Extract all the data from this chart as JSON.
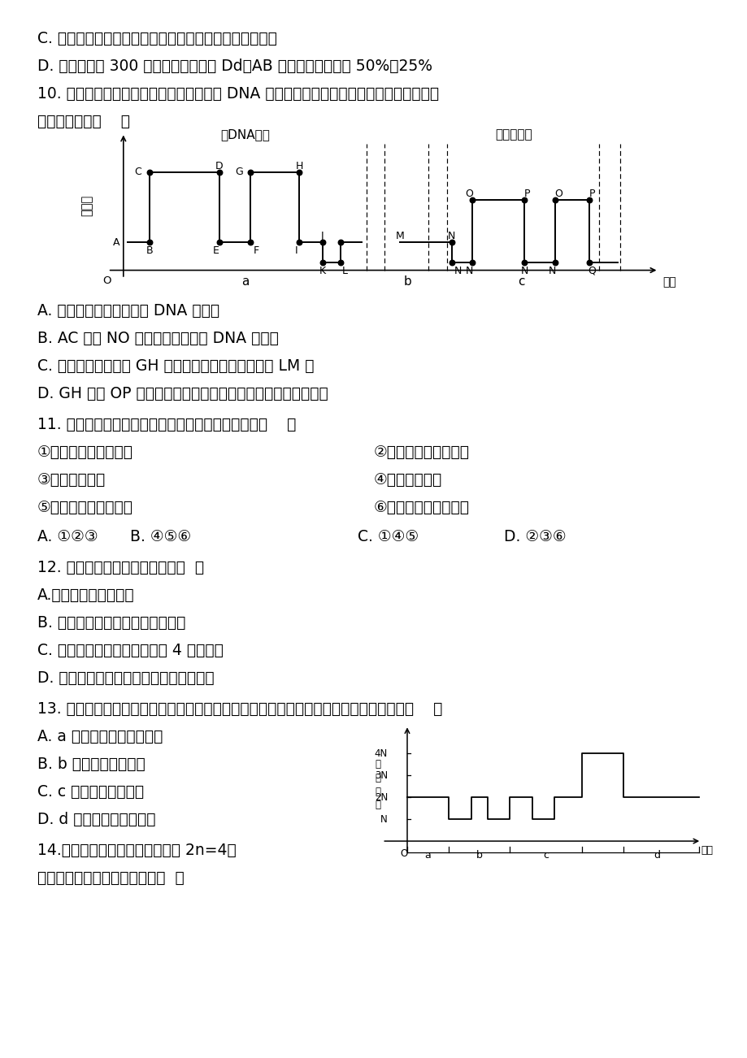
{
  "bg": "#ffffff",
  "lines": [
    "C. 乙同学模拟的是非同源染色体上非等位基因的自由组合",
    "D. 甲、乙重复 300 次实验后，统计的 Dd、AB 组合的概率依次为 50%、25%",
    "10. 下图表示细胞分裂和受精作用过程中核 DNA 含量和染色体数目的变化。据图分析，下列",
    "叙述正确的是（    ）"
  ],
  "answers_10": [
    "A. 图中所示时期发生三次 DNA 的复制",
    "B. AC 段和 NO 段形成的原因都是 DNA 的复制",
    "C. 基因的分离发生在 GH 段，基因的自由组合发生在 LM 段",
    "D. GH 段和 OP 段含有的染色体数目相同，且都含有同源染色体"
  ],
  "q11_text": "11. 下列细胞既含有同源染色体，又含染色单体的是（    ）",
  "q11_col1": [
    "①减数第一次分裂后期",
    "③有丝分裂后期",
    "⑤减数第一次分裂中期"
  ],
  "q11_col2": [
    "②减数第二次分裂后期",
    "④有丝分裂中期",
    "⑥减数第二次分裂中期"
  ],
  "q11_ans": [
    "A. ①②③",
    "B. ④⑤⑥",
    "C. ①④⑤",
    "D. ②③⑥"
  ],
  "q12_text": "12. 根据下图，叙述中正确的是（  ）",
  "q12_opts": [
    "A.甲可能是丙的子细胞",
    "B. 乙、丙细胞不可能来自同一个体",
    "C. 甲、乙、丙三个细胞均含有 4 条染色体",
    "D. 甲、乙、丙三个细胞均含有同源染色体"
  ],
  "q13_text": "13. 下图表示在不同生命活动过程中，细胞内染色体数目的变化曲线，下列叙述正确的是（    ）",
  "q13_opts": [
    "A. a 过程没有姐妹染色单体",
    "B. b 过程细胞数目不变",
    "C. c 过程发生细胞融合",
    "D. d 过程没有同源染色体"
  ],
  "q14_text": "14.假定某动物体细胞染色体数目 2n=4，",
  "q14_text2": "据图指出下列叙述不正确的是（  ）"
}
